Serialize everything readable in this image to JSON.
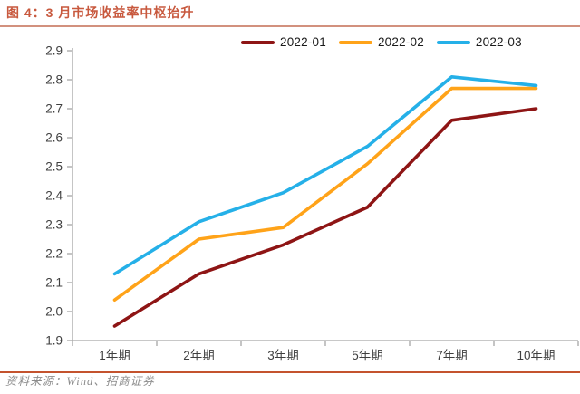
{
  "colors": {
    "title": "#C8593E",
    "title_rule": "#D2917E",
    "footer_rule": "#C4532E",
    "footer_text": "#8C8C8C",
    "axis": "#A6A6A6",
    "tick_text": "#3F3F3F"
  },
  "footer": {
    "source": "资料来源：Wind、招商证券"
  },
  "chart_data": {
    "type": "line",
    "title": "图 4：3 月市场收益率中枢抬升",
    "categories": [
      "1年期",
      "2年期",
      "3年期",
      "5年期",
      "7年期",
      "10年期"
    ],
    "series": [
      {
        "name": "2022-01",
        "color": "#8E1515",
        "values": [
          1.95,
          2.13,
          2.23,
          2.36,
          2.66,
          2.7
        ]
      },
      {
        "name": "2022-02",
        "color": "#FFA319",
        "values": [
          2.04,
          2.25,
          2.29,
          2.51,
          2.77,
          2.77
        ]
      },
      {
        "name": "2022-03",
        "color": "#25B0E8",
        "values": [
          2.13,
          2.31,
          2.41,
          2.57,
          2.81,
          2.78
        ]
      }
    ],
    "ylim": [
      1.9,
      2.9
    ],
    "y_ticks": [
      "1.9",
      "2.0",
      "2.1",
      "2.2",
      "2.3",
      "2.4",
      "2.5",
      "2.6",
      "2.7",
      "2.8",
      "2.9"
    ],
    "xlabel": "",
    "ylabel": "",
    "legend_position": "top",
    "grid": false
  }
}
